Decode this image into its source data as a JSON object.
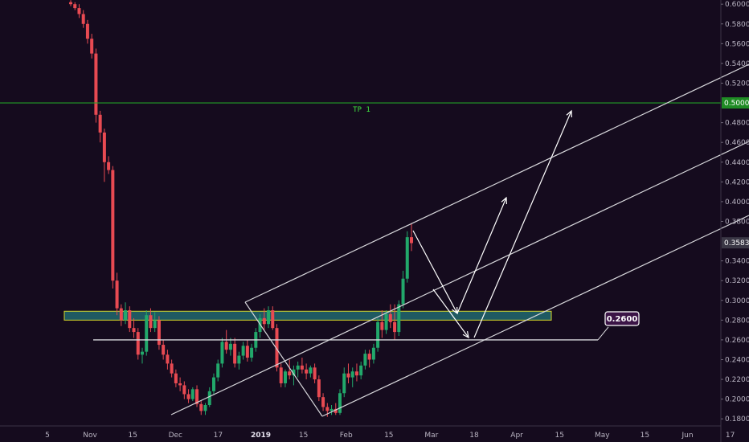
{
  "chart_data": {
    "type": "candlestick",
    "y_ticks": [
      "0.6000",
      "0.5800",
      "0.5600",
      "0.5400",
      "0.5200",
      "0.4800",
      "0.4600",
      "0.4400",
      "0.4200",
      "0.4000",
      "0.3800",
      "0.3400",
      "0.3200",
      "0.3000",
      "0.2800",
      "0.2600",
      "0.2400",
      "0.2200",
      "0.2000",
      "0.1800"
    ],
    "x_ticks": [
      "5",
      "Nov",
      "15",
      "Dec",
      "17",
      "2019",
      "15",
      "Feb",
      "15",
      "Mar",
      "18",
      "Apr",
      "15",
      "May",
      "15",
      "Jun",
      "17"
    ],
    "bold_x_tick": "2019",
    "price_labels": [
      {
        "value": 0.5,
        "text": "0.5000",
        "color": "#1f8b24"
      },
      {
        "value": 0.3583,
        "text": "0.3583",
        "color": "#3a3745"
      }
    ],
    "horizontal_lines": [
      {
        "value": 0.5,
        "color": "#22a027",
        "label": "TP 1",
        "label_color": "#3fe33f"
      }
    ],
    "zone": {
      "from": 0.28,
      "to": 0.289,
      "fill": "#1f5a62",
      "border": "#d6d62a"
    },
    "support_line": {
      "value": 0.26
    },
    "callout": {
      "text": "0.2600",
      "bg": "#3b1446",
      "border": "#ffffff"
    },
    "colors": {
      "up": "#22a86b",
      "down": "#e84a52",
      "lines": "#d8d8dc",
      "background": "#150b1e"
    },
    "candles": [
      [
        0.602,
        0.604,
        0.598,
        0.6
      ],
      [
        0.6,
        0.602,
        0.594,
        0.596
      ],
      [
        0.596,
        0.6,
        0.586,
        0.59
      ],
      [
        0.59,
        0.594,
        0.576,
        0.58
      ],
      [
        0.58,
        0.584,
        0.56,
        0.565
      ],
      [
        0.565,
        0.57,
        0.545,
        0.55
      ],
      [
        0.55,
        0.555,
        0.48,
        0.488
      ],
      [
        0.488,
        0.492,
        0.46,
        0.47
      ],
      [
        0.47,
        0.474,
        0.42,
        0.44
      ],
      [
        0.44,
        0.446,
        0.428,
        0.432
      ],
      [
        0.432,
        0.436,
        0.312,
        0.32
      ],
      [
        0.32,
        0.328,
        0.285,
        0.292
      ],
      [
        0.292,
        0.296,
        0.274,
        0.28
      ],
      [
        0.28,
        0.298,
        0.276,
        0.29
      ],
      [
        0.29,
        0.294,
        0.268,
        0.272
      ],
      [
        0.272,
        0.282,
        0.262,
        0.268
      ],
      [
        0.268,
        0.272,
        0.24,
        0.245
      ],
      [
        0.245,
        0.252,
        0.236,
        0.248
      ],
      [
        0.248,
        0.29,
        0.244,
        0.285
      ],
      [
        0.285,
        0.292,
        0.268,
        0.272
      ],
      [
        0.272,
        0.288,
        0.268,
        0.28
      ],
      [
        0.28,
        0.284,
        0.25,
        0.255
      ],
      [
        0.255,
        0.26,
        0.24,
        0.245
      ],
      [
        0.245,
        0.25,
        0.23,
        0.236
      ],
      [
        0.236,
        0.24,
        0.222,
        0.226
      ],
      [
        0.226,
        0.23,
        0.212,
        0.216
      ],
      [
        0.216,
        0.222,
        0.208,
        0.214
      ],
      [
        0.214,
        0.218,
        0.2,
        0.205
      ],
      [
        0.205,
        0.21,
        0.196,
        0.2
      ],
      [
        0.2,
        0.212,
        0.198,
        0.21
      ],
      [
        0.21,
        0.214,
        0.192,
        0.195
      ],
      [
        0.195,
        0.198,
        0.184,
        0.188
      ],
      [
        0.188,
        0.196,
        0.184,
        0.194
      ],
      [
        0.194,
        0.212,
        0.192,
        0.208
      ],
      [
        0.208,
        0.226,
        0.204,
        0.222
      ],
      [
        0.222,
        0.24,
        0.218,
        0.236
      ],
      [
        0.236,
        0.262,
        0.232,
        0.258
      ],
      [
        0.258,
        0.27,
        0.246,
        0.25
      ],
      [
        0.25,
        0.262,
        0.244,
        0.256
      ],
      [
        0.256,
        0.262,
        0.232,
        0.236
      ],
      [
        0.236,
        0.248,
        0.23,
        0.244
      ],
      [
        0.244,
        0.258,
        0.24,
        0.254
      ],
      [
        0.254,
        0.26,
        0.238,
        0.242
      ],
      [
        0.242,
        0.256,
        0.238,
        0.252
      ],
      [
        0.252,
        0.272,
        0.248,
        0.268
      ],
      [
        0.268,
        0.286,
        0.262,
        0.282
      ],
      [
        0.282,
        0.292,
        0.27,
        0.276
      ],
      [
        0.276,
        0.294,
        0.272,
        0.29
      ],
      [
        0.29,
        0.294,
        0.27,
        0.272
      ],
      [
        0.272,
        0.276,
        0.228,
        0.232
      ],
      [
        0.232,
        0.236,
        0.212,
        0.216
      ],
      [
        0.216,
        0.23,
        0.212,
        0.228
      ],
      [
        0.228,
        0.24,
        0.22,
        0.224
      ],
      [
        0.224,
        0.234,
        0.214,
        0.23
      ],
      [
        0.23,
        0.238,
        0.222,
        0.234
      ],
      [
        0.234,
        0.242,
        0.226,
        0.23
      ],
      [
        0.23,
        0.236,
        0.22,
        0.226
      ],
      [
        0.226,
        0.234,
        0.222,
        0.232
      ],
      [
        0.232,
        0.236,
        0.216,
        0.22
      ],
      [
        0.22,
        0.224,
        0.198,
        0.202
      ],
      [
        0.202,
        0.206,
        0.188,
        0.192
      ],
      [
        0.192,
        0.196,
        0.182,
        0.188
      ],
      [
        0.188,
        0.194,
        0.184,
        0.19
      ],
      [
        0.19,
        0.196,
        0.184,
        0.186
      ],
      [
        0.186,
        0.21,
        0.184,
        0.206
      ],
      [
        0.206,
        0.232,
        0.202,
        0.226
      ],
      [
        0.226,
        0.236,
        0.216,
        0.222
      ],
      [
        0.222,
        0.232,
        0.212,
        0.228
      ],
      [
        0.228,
        0.236,
        0.218,
        0.224
      ],
      [
        0.224,
        0.238,
        0.22,
        0.234
      ],
      [
        0.234,
        0.25,
        0.23,
        0.246
      ],
      [
        0.246,
        0.25,
        0.232,
        0.24
      ],
      [
        0.24,
        0.256,
        0.236,
        0.252
      ],
      [
        0.252,
        0.282,
        0.248,
        0.278
      ],
      [
        0.278,
        0.29,
        0.262,
        0.27
      ],
      [
        0.27,
        0.29,
        0.266,
        0.286
      ],
      [
        0.286,
        0.296,
        0.272,
        0.278
      ],
      [
        0.278,
        0.296,
        0.26,
        0.268
      ],
      [
        0.268,
        0.3,
        0.264,
        0.296
      ],
      [
        0.296,
        0.33,
        0.292,
        0.322
      ],
      [
        0.322,
        0.37,
        0.318,
        0.364
      ],
      [
        0.364,
        0.378,
        0.35,
        0.358
      ]
    ]
  }
}
